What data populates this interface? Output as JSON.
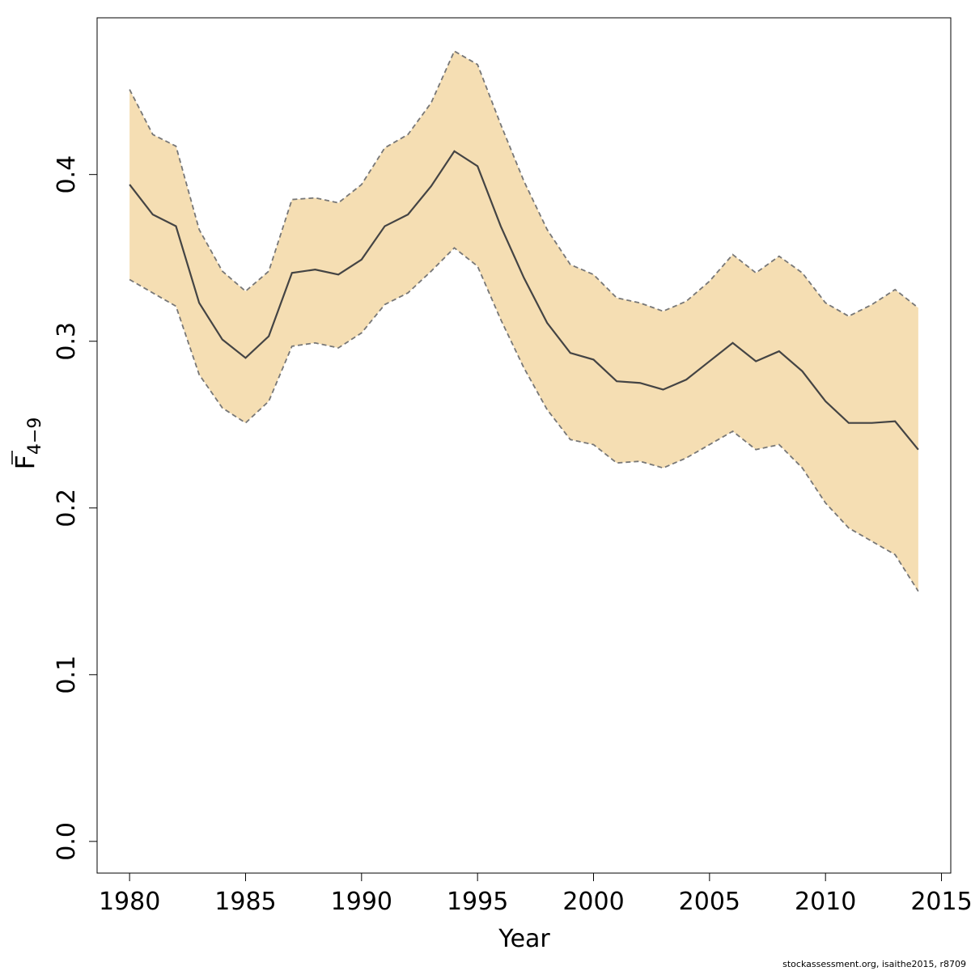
{
  "chart_data": {
    "type": "line",
    "xlabel": "Year",
    "ylabel": {
      "main": "F",
      "subscript": "4−9",
      "overline": true
    },
    "xlim": [
      1978.6,
      2015.4
    ],
    "ylim": [
      -0.019,
      0.494
    ],
    "x_ticks": [
      1980,
      1985,
      1990,
      1995,
      2000,
      2005,
      2010,
      2015
    ],
    "x_tick_labels": [
      "1980",
      "1985",
      "1990",
      "1995",
      "2000",
      "2005",
      "2010",
      "2015"
    ],
    "y_ticks": [
      0.0,
      0.1,
      0.2,
      0.3,
      0.4
    ],
    "y_tick_labels": [
      "0.0",
      "0.1",
      "0.2",
      "0.3",
      "0.4"
    ],
    "grid": false,
    "colors": {
      "band": "#f5deb3",
      "line": "#444444",
      "bound": "#777777"
    },
    "series": [
      {
        "role": "estimate",
        "x": [
          1980,
          1981,
          1982,
          1983,
          1984,
          1985,
          1986,
          1987,
          1988,
          1989,
          1990,
          1991,
          1992,
          1993,
          1994,
          1995,
          1996,
          1997,
          1998,
          1999,
          2000,
          2001,
          2002,
          2003,
          2004,
          2005,
          2006,
          2007,
          2008,
          2009,
          2010,
          2011,
          2012,
          2013,
          2014
        ],
        "y": [
          0.394,
          0.376,
          0.369,
          0.323,
          0.301,
          0.29,
          0.303,
          0.341,
          0.343,
          0.34,
          0.349,
          0.369,
          0.376,
          0.393,
          0.414,
          0.405,
          0.369,
          0.338,
          0.311,
          0.293,
          0.289,
          0.276,
          0.275,
          0.271,
          0.277,
          0.288,
          0.299,
          0.288,
          0.294,
          0.282,
          0.264,
          0.251,
          0.251,
          0.252,
          0.235
        ]
      },
      {
        "role": "upper",
        "x": [
          1980,
          1981,
          1982,
          1983,
          1984,
          1985,
          1986,
          1987,
          1988,
          1989,
          1990,
          1991,
          1992,
          1993,
          1994,
          1995,
          1996,
          1997,
          1998,
          1999,
          2000,
          2001,
          2002,
          2003,
          2004,
          2005,
          2006,
          2007,
          2008,
          2009,
          2010,
          2011,
          2012,
          2013,
          2014
        ],
        "y": [
          0.451,
          0.424,
          0.417,
          0.367,
          0.342,
          0.33,
          0.342,
          0.385,
          0.386,
          0.383,
          0.394,
          0.416,
          0.424,
          0.443,
          0.474,
          0.466,
          0.43,
          0.396,
          0.367,
          0.346,
          0.34,
          0.326,
          0.323,
          0.318,
          0.324,
          0.336,
          0.352,
          0.341,
          0.351,
          0.341,
          0.323,
          0.315,
          0.322,
          0.331,
          0.32
        ]
      },
      {
        "role": "lower",
        "x": [
          1980,
          1981,
          1982,
          1983,
          1984,
          1985,
          1986,
          1987,
          1988,
          1989,
          1990,
          1991,
          1992,
          1993,
          1994,
          1995,
          1996,
          1997,
          1998,
          1999,
          2000,
          2001,
          2002,
          2003,
          2004,
          2005,
          2006,
          2007,
          2008,
          2009,
          2010,
          2011,
          2012,
          2013,
          2014
        ],
        "y": [
          0.337,
          0.329,
          0.321,
          0.28,
          0.26,
          0.251,
          0.264,
          0.297,
          0.299,
          0.296,
          0.305,
          0.322,
          0.329,
          0.342,
          0.356,
          0.345,
          0.313,
          0.284,
          0.259,
          0.241,
          0.238,
          0.227,
          0.228,
          0.224,
          0.23,
          0.238,
          0.246,
          0.235,
          0.238,
          0.224,
          0.203,
          0.188,
          0.18,
          0.172,
          0.15
        ]
      }
    ]
  },
  "credit_text": "stockassessment.org, isaithe2015, r8709"
}
